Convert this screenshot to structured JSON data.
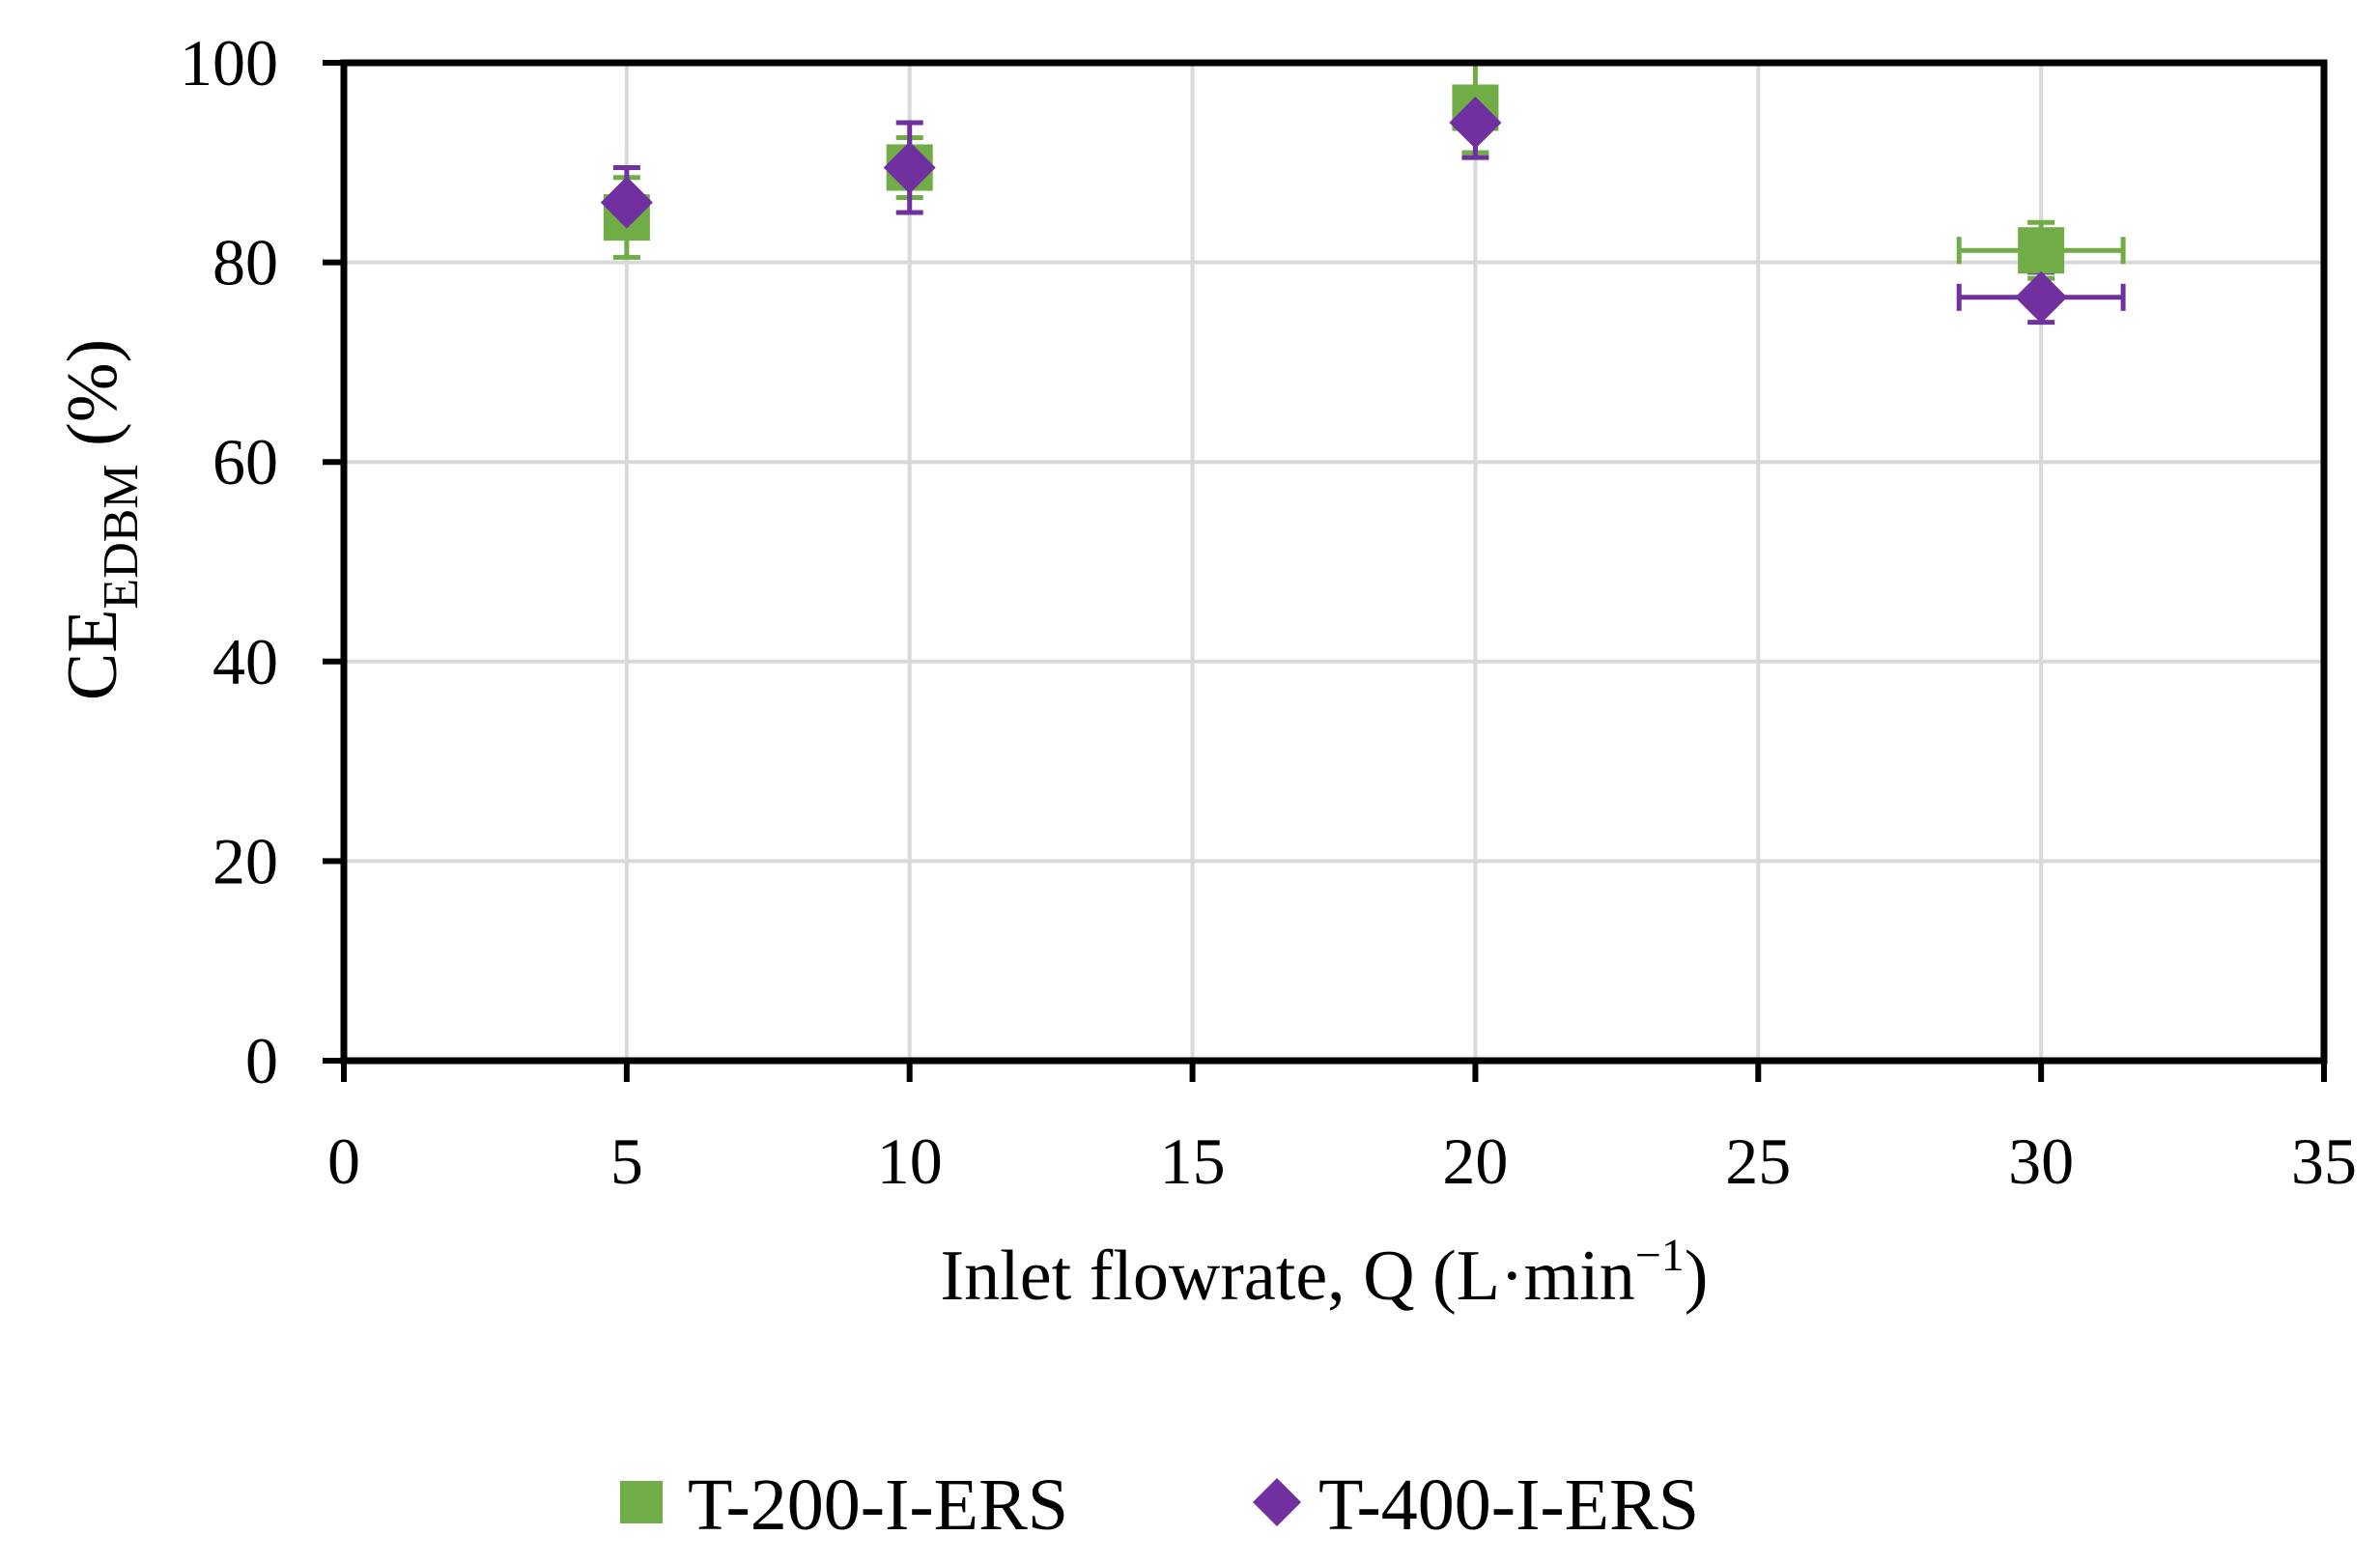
{
  "chart_data": {
    "type": "scatter",
    "title": "",
    "xlabel": "Inlet flowrate, Q (L·min⁻¹)",
    "xlabel_parts": {
      "main": "Inlet flowrate, Q (L·min",
      "sup": "−1",
      "close": ")"
    },
    "ylabel_parts": {
      "main": "CE",
      "sub": "EDBM",
      "unit": " (%)"
    },
    "xlim": [
      0,
      35
    ],
    "ylim": [
      0,
      100
    ],
    "xticks": [
      "0",
      "5",
      "10",
      "15",
      "20",
      "25",
      "30",
      "35"
    ],
    "yticks": [
      "0",
      "20",
      "40",
      "60",
      "80",
      "100"
    ],
    "grid": true,
    "legend_position": "bottom",
    "series": [
      {
        "name": "T-200-I-ERS",
        "marker": "square",
        "color": "#70ad47",
        "points": [
          {
            "x": 5,
            "y": 84.5,
            "yerr": 4,
            "xerr": 0
          },
          {
            "x": 10,
            "y": 89.5,
            "yerr": 3,
            "xerr": 0
          },
          {
            "x": 20,
            "y": 95.5,
            "yerr": 4.5,
            "xerr": 0
          },
          {
            "x": 30,
            "y": 81.2,
            "yerr": 2.8,
            "xerr": 1.45
          }
        ]
      },
      {
        "name": "T-400-I-ERS",
        "marker": "diamond",
        "color": "#7030a0",
        "points": [
          {
            "x": 5,
            "y": 86,
            "yerr": 3.5,
            "xerr": 0
          },
          {
            "x": 10,
            "y": 89.5,
            "yerr": 4.5,
            "xerr": 0
          },
          {
            "x": 20,
            "y": 94,
            "yerr": 3.5,
            "xerr": 0
          },
          {
            "x": 30,
            "y": 76.5,
            "yerr": 2.5,
            "xerr": 1.45
          }
        ]
      }
    ]
  }
}
